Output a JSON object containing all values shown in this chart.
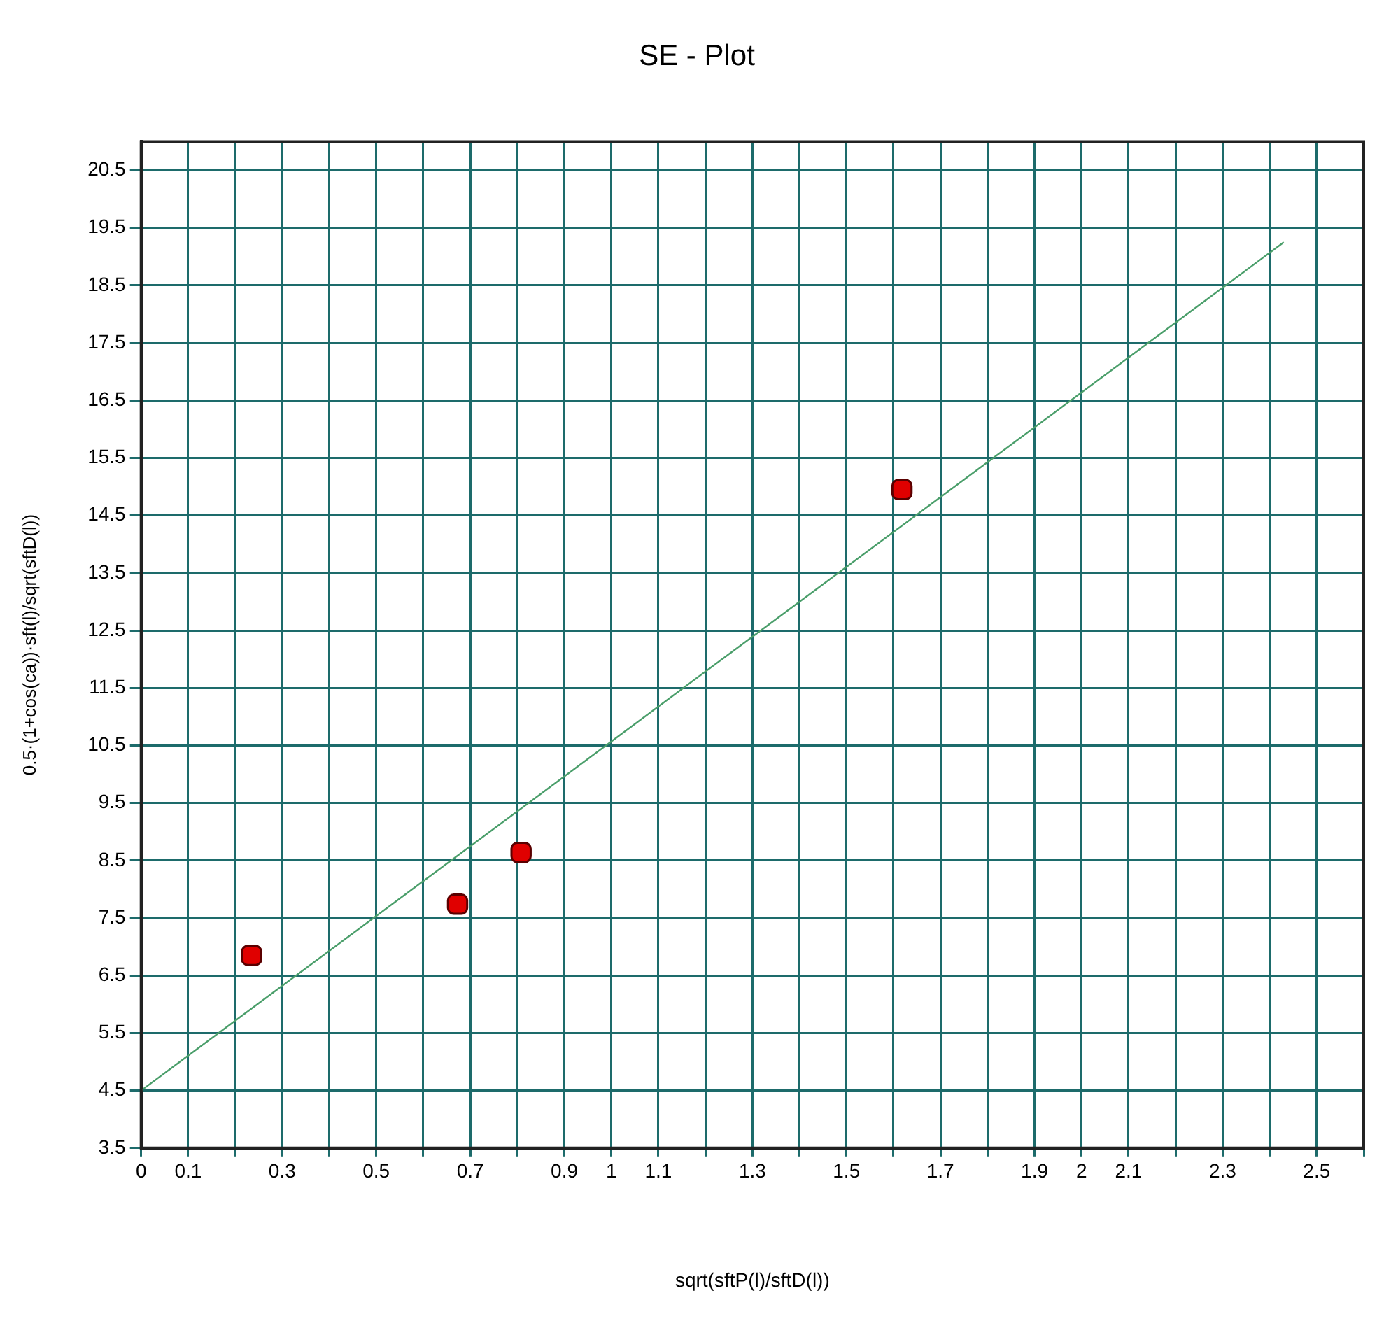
{
  "chart_data": {
    "type": "scatter",
    "title": "SE - Plot",
    "xlabel": "sqrt(sftP(l)/sftD(l))",
    "ylabel": "0.5·(1+cos(ca))·sft(l)/sqrt(sftD(l))",
    "series": [
      {
        "color": "#e00000",
        "x": [
          0.235,
          0.673,
          0.808,
          1.618
        ],
        "values": [
          6.85,
          7.74,
          8.64,
          14.95
        ]
      },
      {
        "type": "line",
        "color": "#4a9e6a",
        "marker": "none",
        "x": [
          0,
          2.43
        ],
        "values": [
          4.5,
          19.25
        ]
      }
    ],
    "marker": "square",
    "grid": true,
    "legend": false,
    "xlim": [
      0,
      2.6
    ],
    "ylim": [
      3.5,
      21
    ],
    "xticks": [
      0,
      0.1,
      {
        "value": 0.2,
        "label": null
      },
      0.3,
      {
        "value": 0.4,
        "label": null
      },
      0.5,
      {
        "value": 0.6,
        "label": null
      },
      0.7,
      {
        "value": 0.8,
        "label": null
      },
      0.9,
      1,
      1.1,
      {
        "value": 1.2,
        "label": null
      },
      1.3,
      {
        "value": 1.4,
        "label": null
      },
      1.5,
      {
        "value": 1.6,
        "label": null
      },
      1.7,
      {
        "value": 1.8,
        "label": null
      },
      1.9,
      2,
      2.1,
      {
        "value": 2.2,
        "label": null
      },
      2.3,
      {
        "value": 2.4,
        "label": null
      },
      2.5,
      {
        "value": 2.6,
        "label": null
      }
    ],
    "yticks": [
      3.5,
      4.5,
      5.5,
      6.5,
      7.5,
      8.5,
      9.5,
      10.5,
      11.5,
      12.5,
      13.5,
      14.5,
      15.5,
      16.5,
      17.5,
      18.5,
      19.5,
      20.5
    ]
  }
}
